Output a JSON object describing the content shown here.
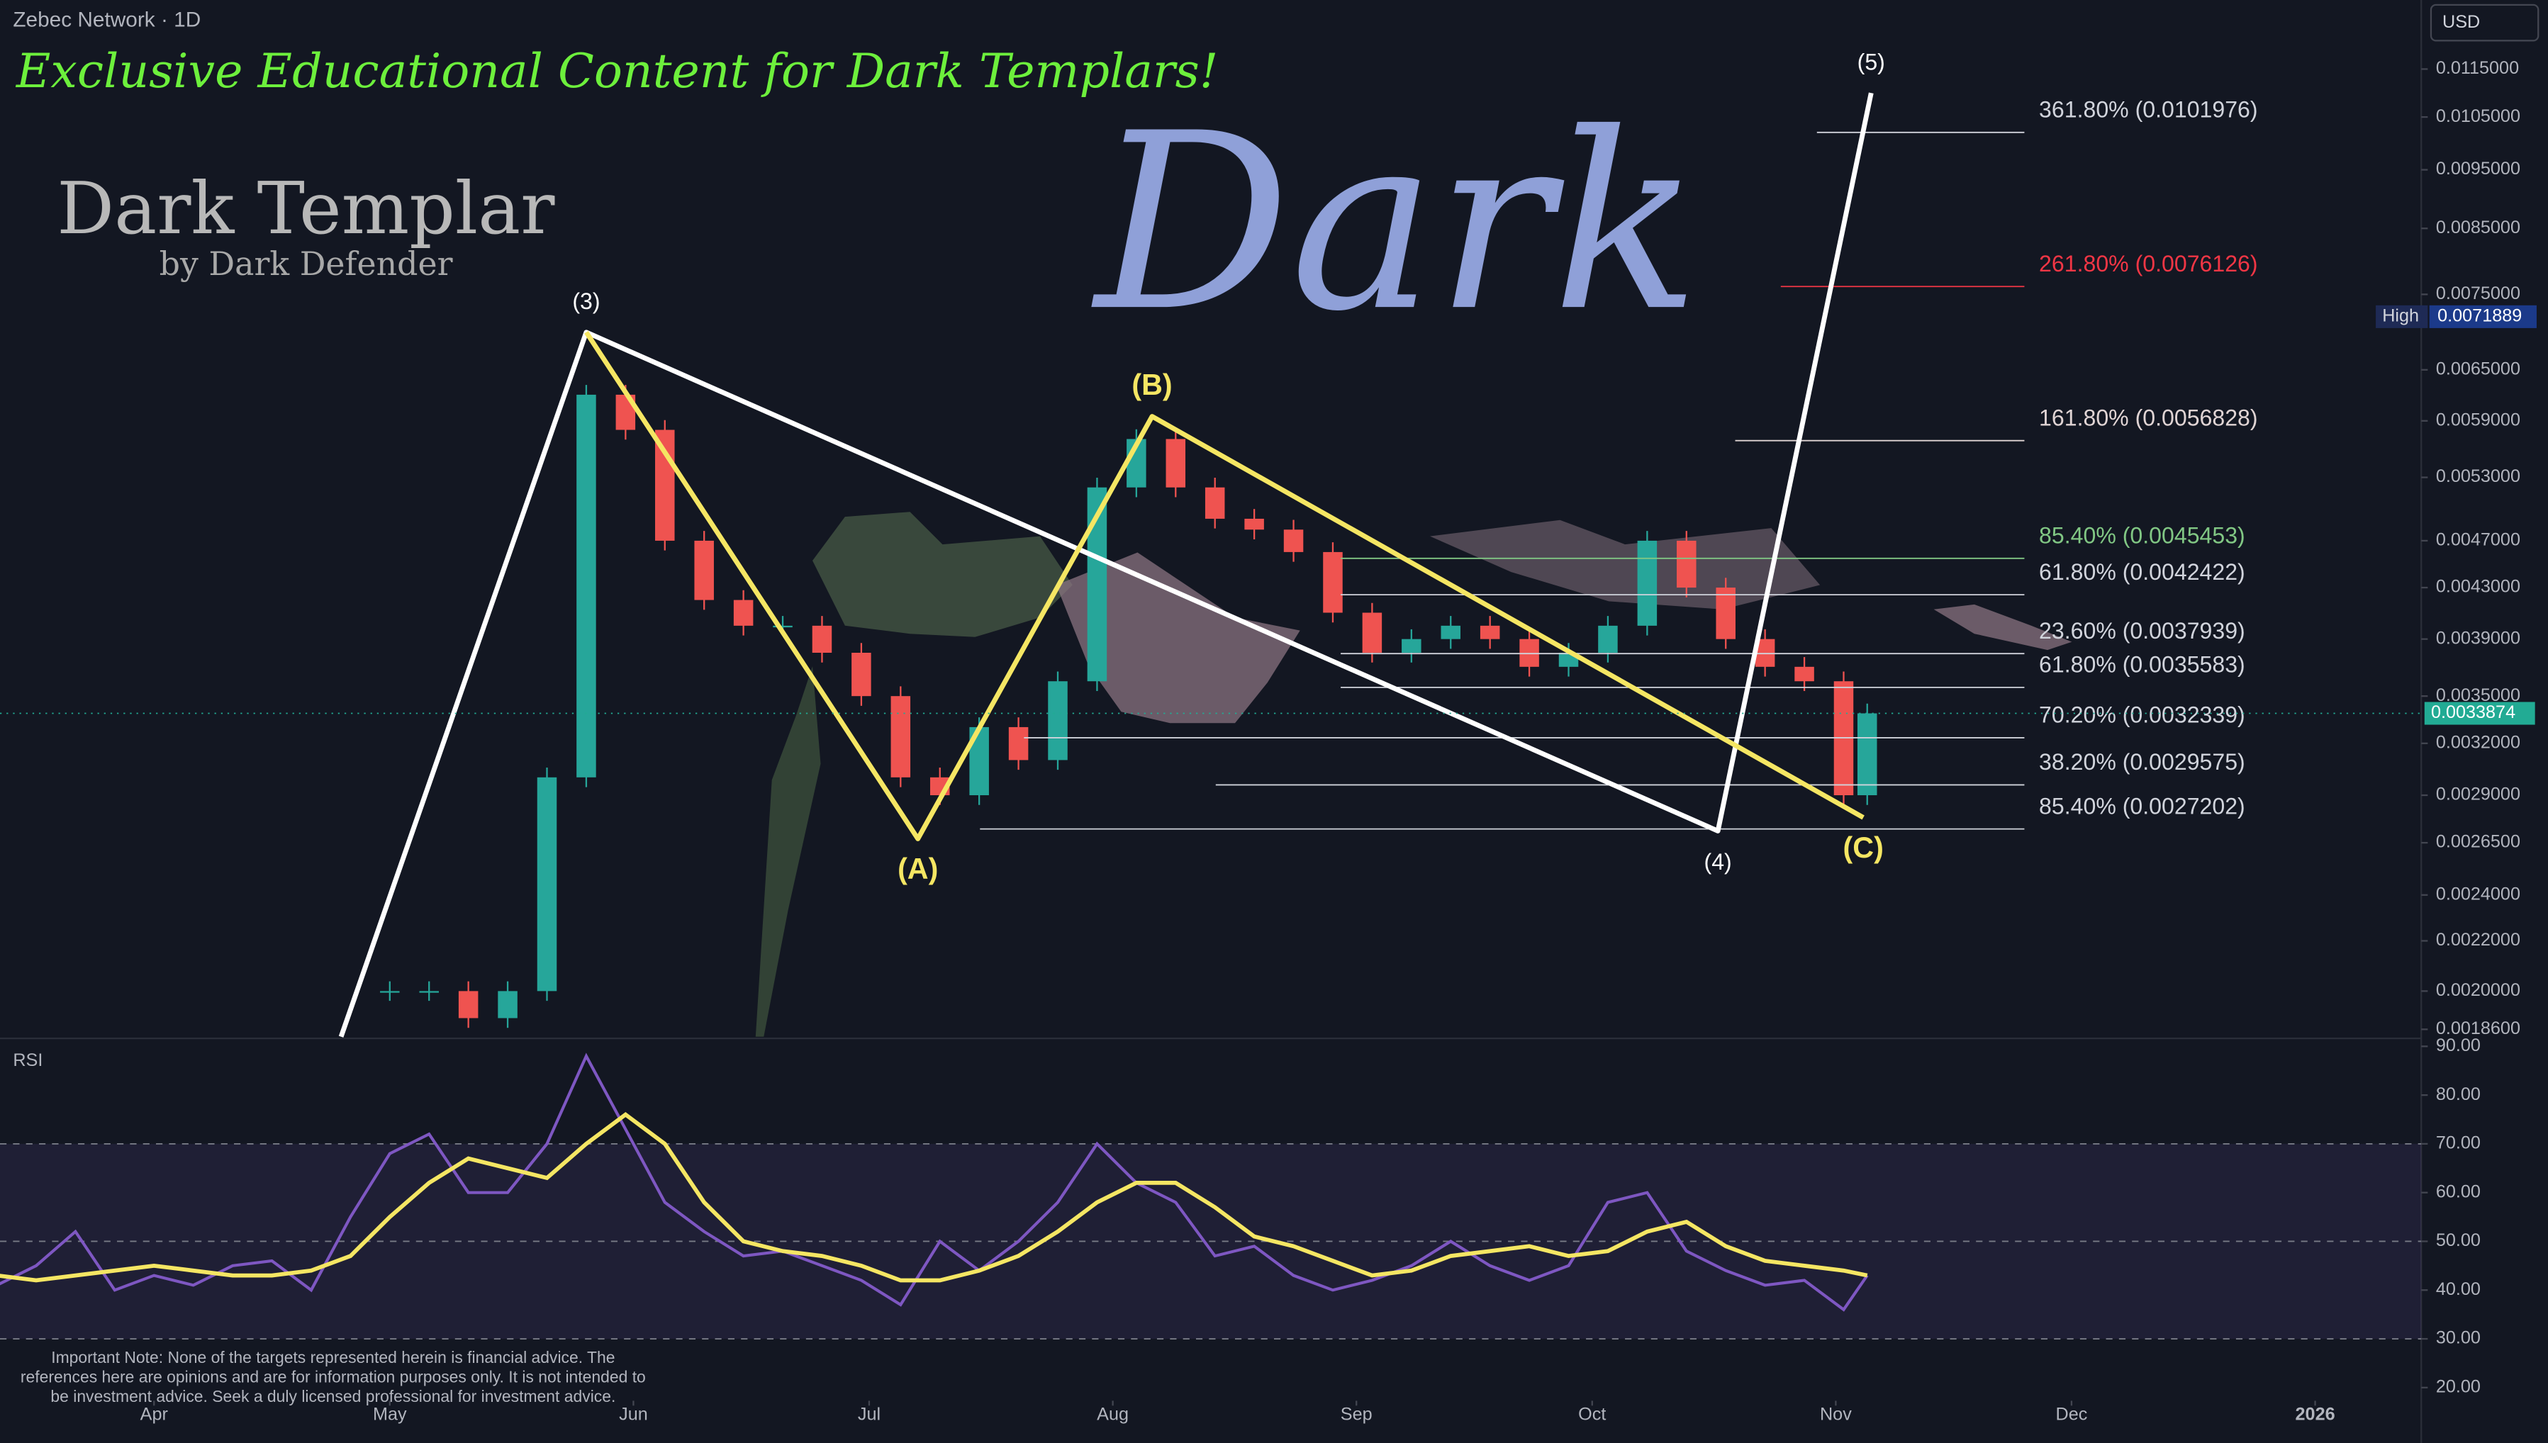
{
  "chart_data": {
    "type": "candlestick",
    "symbol": "Zebec Network · 1D",
    "currency": "USD",
    "banner": "Exclusive Educational Content for Dark Templars!",
    "logo_title": "Dark Templar",
    "logo_subtitle": "by Dark Defender",
    "watermark": "Dark",
    "log_scale": true,
    "xlim": [
      70.4,
      378.5
    ],
    "xticks": [
      {
        "value": 90,
        "label": "Apr"
      },
      {
        "value": 120,
        "label": "May"
      },
      {
        "value": 151,
        "label": "Jun"
      },
      {
        "value": 181,
        "label": "Jul"
      },
      {
        "value": 212,
        "label": "Aug"
      },
      {
        "value": 243,
        "label": "Sep"
      },
      {
        "value": 273,
        "label": "Oct"
      },
      {
        "value": 304,
        "label": "Nov"
      },
      {
        "value": 334,
        "label": "Dec"
      },
      {
        "value": 365,
        "label": "2026"
      }
    ],
    "ylim": [
      0.001834,
      0.01311
    ],
    "yticks": [
      {
        "value": 0.0115,
        "label": "0.0115000"
      },
      {
        "value": 0.0105,
        "label": "0.0105000"
      },
      {
        "value": 0.0095,
        "label": "0.0095000"
      },
      {
        "value": 0.0085,
        "label": "0.0085000"
      },
      {
        "value": 0.0075,
        "label": "0.0075000"
      },
      {
        "value": 0.0065,
        "label": "0.0065000"
      },
      {
        "value": 0.0059,
        "label": "0.0059000"
      },
      {
        "value": 0.0053,
        "label": "0.0053000"
      },
      {
        "value": 0.0047,
        "label": "0.0047000"
      },
      {
        "value": 0.0043,
        "label": "0.0043000"
      },
      {
        "value": 0.0039,
        "label": "0.0039000"
      },
      {
        "value": 0.0035,
        "label": "0.0035000"
      },
      {
        "value": 0.0032,
        "label": "0.0032000"
      },
      {
        "value": 0.0029,
        "label": "0.0029000"
      },
      {
        "value": 0.00265,
        "label": "0.0026500"
      },
      {
        "value": 0.0024,
        "label": "0.0024000"
      },
      {
        "value": 0.0022,
        "label": "0.0022000"
      },
      {
        "value": 0.002,
        "label": "0.0020000"
      },
      {
        "value": 0.00186,
        "label": "0.0018600"
      }
    ],
    "x": [
      120,
      125,
      130,
      135,
      140,
      145,
      150,
      155,
      160,
      165,
      170,
      175,
      180,
      185,
      190,
      195,
      200,
      205,
      210,
      215,
      220,
      225,
      230,
      235,
      240,
      245,
      250,
      255,
      260,
      265,
      270,
      275,
      280,
      285,
      290,
      295,
      300,
      305,
      308
    ],
    "close": [
      0.002,
      0.002,
      0.0019,
      0.002,
      0.003,
      0.0062,
      0.0058,
      0.0047,
      0.0042,
      0.004,
      0.004,
      0.0038,
      0.0035,
      0.003,
      0.0029,
      0.0033,
      0.0031,
      0.0036,
      0.0052,
      0.0057,
      0.0052,
      0.0049,
      0.0048,
      0.0046,
      0.0041,
      0.0038,
      0.0039,
      0.004,
      0.0039,
      0.0037,
      0.0038,
      0.004,
      0.0047,
      0.0043,
      0.0039,
      0.0037,
      0.0036,
      0.0029,
      0.0033874
    ],
    "up_color": "#26a69a",
    "down_color": "#ef5350",
    "high": {
      "label": "High",
      "value": 0.0071889
    },
    "last": 0.0033874,
    "fib_x_end": 328,
    "fib_levels": [
      {
        "label": "361.80% (0.0101976)",
        "price": 0.0101976,
        "color": "#d1d4dc",
        "x_start": 301.6
      },
      {
        "label": "261.80% (0.0076126)",
        "price": 0.0076126,
        "color": "#f23645",
        "x_start": 297
      },
      {
        "label": "161.80% (0.0056828)",
        "price": 0.0056828,
        "color": "#e0d4d4",
        "x_start": 291.2
      },
      {
        "label": "85.40% (0.0045453)",
        "price": 0.0045453,
        "color": "#81c784",
        "x_start": 241
      },
      {
        "label": "61.80% (0.0042422)",
        "price": 0.0042422,
        "color": "#d1d4dc",
        "x_start": 241
      },
      {
        "label": "23.60% (0.0037939)",
        "price": 0.0037939,
        "color": "#d1d4dc",
        "x_start": 241
      },
      {
        "label": "61.80% (0.0035583)",
        "price": 0.0035583,
        "color": "#d1d4dc",
        "x_start": 241
      },
      {
        "label": "70.20% (0.0032339)",
        "price": 0.0032339,
        "color": "#d1d4dc",
        "x_start": 200.7
      },
      {
        "label": "38.20% (0.0029575)",
        "price": 0.0029575,
        "color": "#d1d4dc",
        "x_start": 225.1
      },
      {
        "label": "85.40% (0.0027202)",
        "price": 0.0027202,
        "color": "#d1d4dc",
        "x_start": 195.1
      }
    ],
    "waves": [
      {
        "color": "#ffffff",
        "points": [
          {
            "x": 113.8,
            "price": 0.001834
          },
          {
            "label": "(3)",
            "x": 145,
            "price": 0.00698
          },
          {
            "label": "(4)",
            "x": 289,
            "price": 0.00271
          },
          {
            "label": "(5)",
            "x": 308.5,
            "price": 0.01099
          }
        ]
      },
      {
        "color": "#f5e663",
        "points": [
          {
            "x": 145,
            "price": 0.00698
          },
          {
            "label": "(A)",
            "x": 187.2,
            "price": 0.00267
          },
          {
            "label": "(B)",
            "x": 217,
            "price": 0.00595
          },
          {
            "label": "(C)",
            "x": 307.5,
            "price": 0.00278
          }
        ]
      }
    ],
    "rsi": {
      "title": "RSI",
      "ylim": [
        17.3,
        91.3
      ],
      "yticks": [
        {
          "value": 90,
          "label": "90.00"
        },
        {
          "value": 80,
          "label": "80.00"
        },
        {
          "value": 70,
          "label": "70.00"
        },
        {
          "value": 60,
          "label": "60.00"
        },
        {
          "value": 50,
          "label": "50.00"
        },
        {
          "value": 40,
          "label": "40.00"
        },
        {
          "value": 30,
          "label": "30.00"
        },
        {
          "value": 20,
          "label": "20.00"
        }
      ],
      "dashed_levels": [
        70,
        50,
        30
      ],
      "x": [
        70,
        75,
        80,
        85,
        90,
        95,
        100,
        105,
        110,
        115,
        120,
        125,
        130,
        135,
        140,
        145,
        150,
        155,
        160,
        165,
        170,
        175,
        180,
        185,
        190,
        195,
        200,
        205,
        210,
        215,
        220,
        225,
        230,
        235,
        240,
        245,
        250,
        255,
        260,
        265,
        270,
        275,
        280,
        285,
        290,
        295,
        300,
        305,
        308
      ],
      "series": [
        {
          "color": "#7e57c2",
          "values": [
            41,
            45,
            52,
            40,
            43,
            41,
            45,
            46,
            40,
            55,
            68,
            72,
            60,
            60,
            70,
            88,
            73,
            58,
            52,
            47,
            48,
            45,
            42,
            37,
            50,
            44,
            50,
            58,
            70,
            62,
            58,
            47,
            49,
            43,
            40,
            42,
            45,
            50,
            45,
            42,
            45,
            58,
            60,
            48,
            44,
            41,
            42,
            36,
            43
          ]
        },
        {
          "color": "#f5e663",
          "values": [
            43,
            42,
            43,
            44,
            45,
            44,
            43,
            43,
            44,
            47,
            55,
            62,
            67,
            65,
            63,
            70,
            76,
            70,
            58,
            50,
            48,
            47,
            45,
            42,
            42,
            44,
            47,
            52,
            58,
            62,
            62,
            57,
            51,
            49,
            46,
            43,
            44,
            47,
            48,
            49,
            47,
            48,
            52,
            54,
            49,
            46,
            45,
            44,
            43
          ]
        }
      ]
    },
    "note": [
      "Important Note: None of the targets represented herein is financial advice. The",
      "references here are opinions and are for information purposes only. It is not intended to",
      "be investment advice. Seek a duly licensed professional for investment advice."
    ]
  }
}
